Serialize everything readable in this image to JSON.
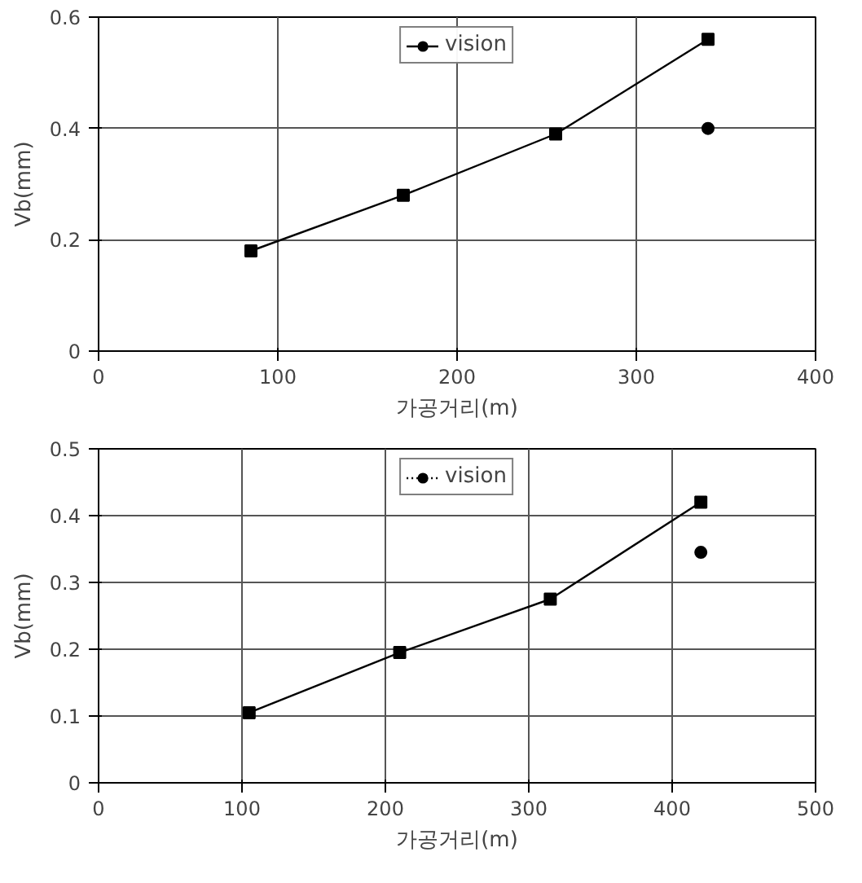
{
  "chart_data": [
    {
      "type": "line",
      "xlabel": "가공거리(m)",
      "ylabel": "Vb(mm)",
      "xlim": [
        0,
        400
      ],
      "xticks": [
        0,
        100,
        200,
        300,
        400
      ],
      "ylim": [
        0,
        0.6
      ],
      "yticks": [
        0,
        0.2,
        0.4,
        0.6
      ],
      "grid": true,
      "legend": "top",
      "series": [
        {
          "color": "#000000",
          "marker": "square",
          "x": [
            85,
            170,
            255,
            340
          ],
          "values": [
            0.18,
            0.28,
            0.39,
            0.56
          ]
        },
        {
          "name": "vision",
          "color": "#000000",
          "marker": "circle",
          "x": [
            340
          ],
          "values": [
            0.4
          ]
        }
      ]
    },
    {
      "type": "line",
      "xlabel": "가공거리(m)",
      "ylabel": "Vb(mm)",
      "xlim": [
        0,
        500
      ],
      "xticks": [
        0,
        100,
        200,
        300,
        400,
        500
      ],
      "ylim": [
        0,
        0.5
      ],
      "yticks": [
        0,
        0.1,
        0.2,
        0.3,
        0.4,
        0.5
      ],
      "grid": true,
      "legend": "top",
      "series": [
        {
          "color": "#000000",
          "marker": "square",
          "x": [
            105,
            210,
            315,
            420
          ],
          "values": [
            0.105,
            0.195,
            0.275,
            0.42
          ]
        },
        {
          "name": "vision",
          "color": "#000000",
          "marker": "circle",
          "line_style": "dotted",
          "x": [
            420
          ],
          "values": [
            0.345
          ]
        }
      ]
    }
  ]
}
